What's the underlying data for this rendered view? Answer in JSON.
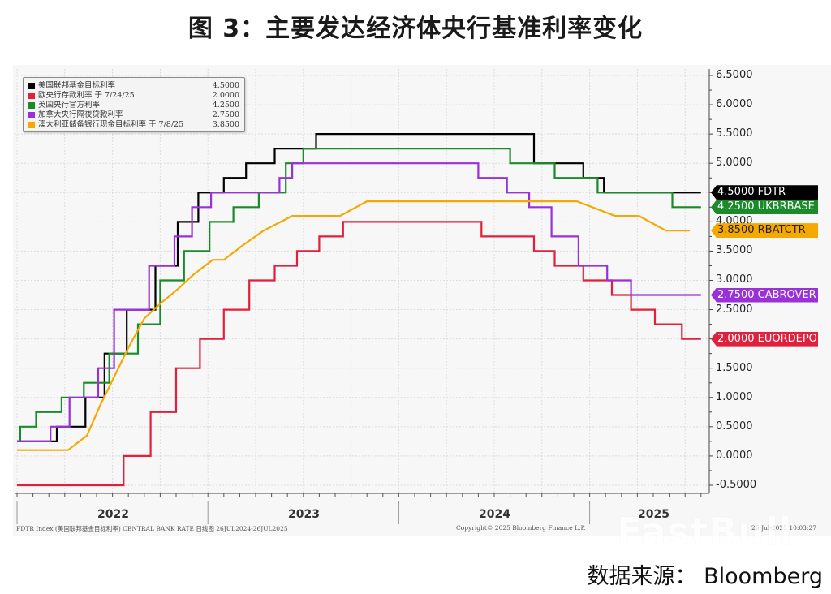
{
  "title": "图 3：主要发达经济体央行基准利率变化",
  "source": "数据来源： Bloomberg",
  "watermark": "FastBull",
  "footer": {
    "left": "FDTR Index (美国联邦基金目标利率) CENTRAL BANK RATE  日线图 26JUL2024-26JUL2025",
    "center": "Copyright© 2025 Bloomberg Finance L.P.",
    "right": "26-Jul-2025 10:03:27"
  },
  "legend": [
    {
      "label": "美国联邦基金目标利率",
      "value": "4.5000",
      "color": "#000000"
    },
    {
      "label": "欧央行存款利率 于 7/24/25",
      "value": "2.0000",
      "color": "#e0203c"
    },
    {
      "label": "英国央行官方利率",
      "value": "4.2500",
      "color": "#1a8a2a"
    },
    {
      "label": "加拿大央行隔夜贷款利率",
      "value": "2.7500",
      "color": "#9a30d8"
    },
    {
      "label": "澳大利亚储备银行现金目标利率 于 7/8/25",
      "value": "3.8500",
      "color": "#f5a800"
    }
  ],
  "tags": [
    {
      "text": "4.5000 FDTR",
      "value": 4.5,
      "color": "#000000",
      "text_color": "#ffffff"
    },
    {
      "text": "4.2500 UKBRBASE",
      "value": 4.25,
      "color": "#1a8a2a",
      "text_color": "#ffffff"
    },
    {
      "text": "3.8500 RBATCTR",
      "value": 3.85,
      "color": "#f5a800",
      "text_color": "#222222"
    },
    {
      "text": "2.7500 CABROVER",
      "value": 2.75,
      "color": "#9a30d8",
      "text_color": "#ffffff"
    },
    {
      "text": "2.0000 EUORDEPO",
      "value": 2.0,
      "color": "#e0203c",
      "text_color": "#ffffff"
    }
  ],
  "chart_data": {
    "type": "line",
    "title": "图 3：主要发达经济体央行基准利率变化",
    "xlabel": "",
    "ylabel": "",
    "ylim": [
      -0.5,
      6.5
    ],
    "yticks": [
      "6.5000",
      "6.0000",
      "5.5000",
      "5.0000",
      "4.5000",
      "4.0000",
      "3.5000",
      "3.0000",
      "2.5000",
      "2.0000",
      "1.5000",
      "1.0000",
      "0.5000",
      "0.0000",
      "-0.5000"
    ],
    "xticks": [
      "2022",
      "2023",
      "2024",
      "2025"
    ],
    "grid": true,
    "legend_position": "top-left",
    "x_unit": "months since Jan 2022",
    "series": [
      {
        "name": "美国联邦基金目标利率 (FDTR)",
        "color": "#000000",
        "step": true,
        "points": [
          [
            0,
            0.25
          ],
          [
            2.5,
            0.25
          ],
          [
            2.5,
            0.5
          ],
          [
            4.3,
            0.5
          ],
          [
            4.3,
            1.0
          ],
          [
            5.5,
            1.0
          ],
          [
            5.5,
            1.75
          ],
          [
            6.9,
            1.75
          ],
          [
            6.9,
            2.5
          ],
          [
            8.7,
            2.5
          ],
          [
            8.7,
            3.25
          ],
          [
            10.1,
            3.25
          ],
          [
            10.1,
            4.0
          ],
          [
            11.4,
            4.0
          ],
          [
            11.4,
            4.5
          ],
          [
            13.0,
            4.5
          ],
          [
            13.0,
            4.75
          ],
          [
            14.4,
            4.75
          ],
          [
            14.4,
            5.0
          ],
          [
            16.2,
            5.0
          ],
          [
            16.2,
            5.25
          ],
          [
            18.8,
            5.25
          ],
          [
            18.8,
            5.5
          ],
          [
            32.5,
            5.5
          ],
          [
            32.5,
            5.0
          ],
          [
            35.6,
            5.0
          ],
          [
            35.6,
            4.75
          ],
          [
            36.9,
            4.75
          ],
          [
            36.9,
            4.5
          ],
          [
            43.0,
            4.5
          ]
        ]
      },
      {
        "name": "欧央行存款利率 (EUORDEPO)",
        "color": "#e0203c",
        "step": true,
        "points": [
          [
            0,
            -0.5
          ],
          [
            6.7,
            -0.5
          ],
          [
            6.7,
            0.0
          ],
          [
            8.4,
            0.0
          ],
          [
            8.4,
            0.75
          ],
          [
            10.0,
            0.75
          ],
          [
            10.0,
            1.5
          ],
          [
            11.5,
            1.5
          ],
          [
            11.5,
            2.0
          ],
          [
            13.0,
            2.0
          ],
          [
            13.0,
            2.5
          ],
          [
            14.6,
            2.5
          ],
          [
            14.6,
            3.0
          ],
          [
            16.2,
            3.0
          ],
          [
            16.2,
            3.25
          ],
          [
            17.6,
            3.25
          ],
          [
            17.6,
            3.5
          ],
          [
            19.0,
            3.5
          ],
          [
            19.0,
            3.75
          ],
          [
            20.5,
            3.75
          ],
          [
            20.5,
            4.0
          ],
          [
            29.2,
            4.0
          ],
          [
            29.2,
            3.75
          ],
          [
            32.5,
            3.75
          ],
          [
            32.5,
            3.5
          ],
          [
            33.8,
            3.5
          ],
          [
            33.8,
            3.25
          ],
          [
            35.6,
            3.25
          ],
          [
            35.6,
            3.0
          ],
          [
            37.4,
            3.0
          ],
          [
            37.4,
            2.75
          ],
          [
            38.6,
            2.75
          ],
          [
            38.6,
            2.5
          ],
          [
            40.1,
            2.5
          ],
          [
            40.1,
            2.25
          ],
          [
            41.8,
            2.25
          ],
          [
            41.8,
            2.0
          ],
          [
            43.0,
            2.0
          ]
        ]
      },
      {
        "name": "英国央行官方利率 (UKBRBASE)",
        "color": "#1a8a2a",
        "step": true,
        "points": [
          [
            0,
            0.25
          ],
          [
            0.2,
            0.25
          ],
          [
            0.2,
            0.5
          ],
          [
            1.2,
            0.5
          ],
          [
            1.2,
            0.75
          ],
          [
            2.8,
            0.75
          ],
          [
            2.8,
            1.0
          ],
          [
            4.2,
            1.0
          ],
          [
            4.2,
            1.25
          ],
          [
            5.8,
            1.25
          ],
          [
            5.8,
            1.75
          ],
          [
            7.6,
            1.75
          ],
          [
            7.6,
            2.25
          ],
          [
            9.0,
            2.25
          ],
          [
            9.0,
            3.0
          ],
          [
            10.5,
            3.0
          ],
          [
            10.5,
            3.5
          ],
          [
            12.1,
            3.5
          ],
          [
            12.1,
            4.0
          ],
          [
            13.6,
            4.0
          ],
          [
            13.6,
            4.25
          ],
          [
            15.2,
            4.25
          ],
          [
            15.2,
            4.5
          ],
          [
            16.9,
            4.5
          ],
          [
            16.9,
            5.0
          ],
          [
            18.0,
            5.0
          ],
          [
            18.0,
            5.25
          ],
          [
            31.0,
            5.25
          ],
          [
            31.0,
            5.0
          ],
          [
            33.8,
            5.0
          ],
          [
            33.8,
            4.75
          ],
          [
            36.5,
            4.75
          ],
          [
            36.5,
            4.5
          ],
          [
            41.2,
            4.5
          ],
          [
            41.2,
            4.25
          ],
          [
            43.0,
            4.25
          ]
        ]
      },
      {
        "name": "加拿大央行隔夜贷款利率 (CABROVER)",
        "color": "#9a30d8",
        "step": true,
        "points": [
          [
            0,
            0.25
          ],
          [
            2.1,
            0.25
          ],
          [
            2.1,
            0.5
          ],
          [
            3.3,
            0.5
          ],
          [
            3.3,
            1.0
          ],
          [
            5.1,
            1.0
          ],
          [
            5.1,
            1.5
          ],
          [
            6.1,
            1.5
          ],
          [
            6.1,
            2.5
          ],
          [
            8.3,
            2.5
          ],
          [
            8.3,
            3.25
          ],
          [
            9.9,
            3.25
          ],
          [
            9.9,
            3.75
          ],
          [
            11.0,
            3.75
          ],
          [
            11.0,
            4.25
          ],
          [
            12.2,
            4.25
          ],
          [
            12.2,
            4.5
          ],
          [
            16.5,
            4.5
          ],
          [
            16.5,
            4.75
          ],
          [
            17.3,
            4.75
          ],
          [
            17.3,
            5.0
          ],
          [
            29.0,
            5.0
          ],
          [
            29.0,
            4.75
          ],
          [
            30.8,
            4.75
          ],
          [
            30.8,
            4.5
          ],
          [
            32.2,
            4.5
          ],
          [
            32.2,
            4.25
          ],
          [
            33.6,
            4.25
          ],
          [
            33.6,
            3.75
          ],
          [
            35.3,
            3.75
          ],
          [
            35.3,
            3.25
          ],
          [
            37.1,
            3.25
          ],
          [
            37.1,
            3.0
          ],
          [
            38.6,
            3.0
          ],
          [
            38.6,
            2.75
          ],
          [
            43.0,
            2.75
          ]
        ]
      },
      {
        "name": "澳大利亚储备银行现金目标利率 (RBATCTR)",
        "color": "#f5a800",
        "step": false,
        "points": [
          [
            0,
            0.1
          ],
          [
            3.2,
            0.1
          ],
          [
            4.4,
            0.35
          ],
          [
            5.2,
            0.85
          ],
          [
            6.1,
            1.35
          ],
          [
            7.0,
            1.85
          ],
          [
            8.0,
            2.35
          ],
          [
            9.0,
            2.6
          ],
          [
            10.1,
            2.85
          ],
          [
            11.1,
            3.1
          ],
          [
            12.3,
            3.35
          ],
          [
            13.0,
            3.35
          ],
          [
            14.2,
            3.6
          ],
          [
            15.5,
            3.85
          ],
          [
            17.3,
            4.1
          ],
          [
            20.3,
            4.1
          ],
          [
            22.0,
            4.35
          ],
          [
            35.2,
            4.35
          ],
          [
            37.6,
            4.1
          ],
          [
            39.1,
            4.1
          ],
          [
            40.8,
            3.85
          ],
          [
            42.3,
            3.85
          ]
        ]
      }
    ]
  }
}
